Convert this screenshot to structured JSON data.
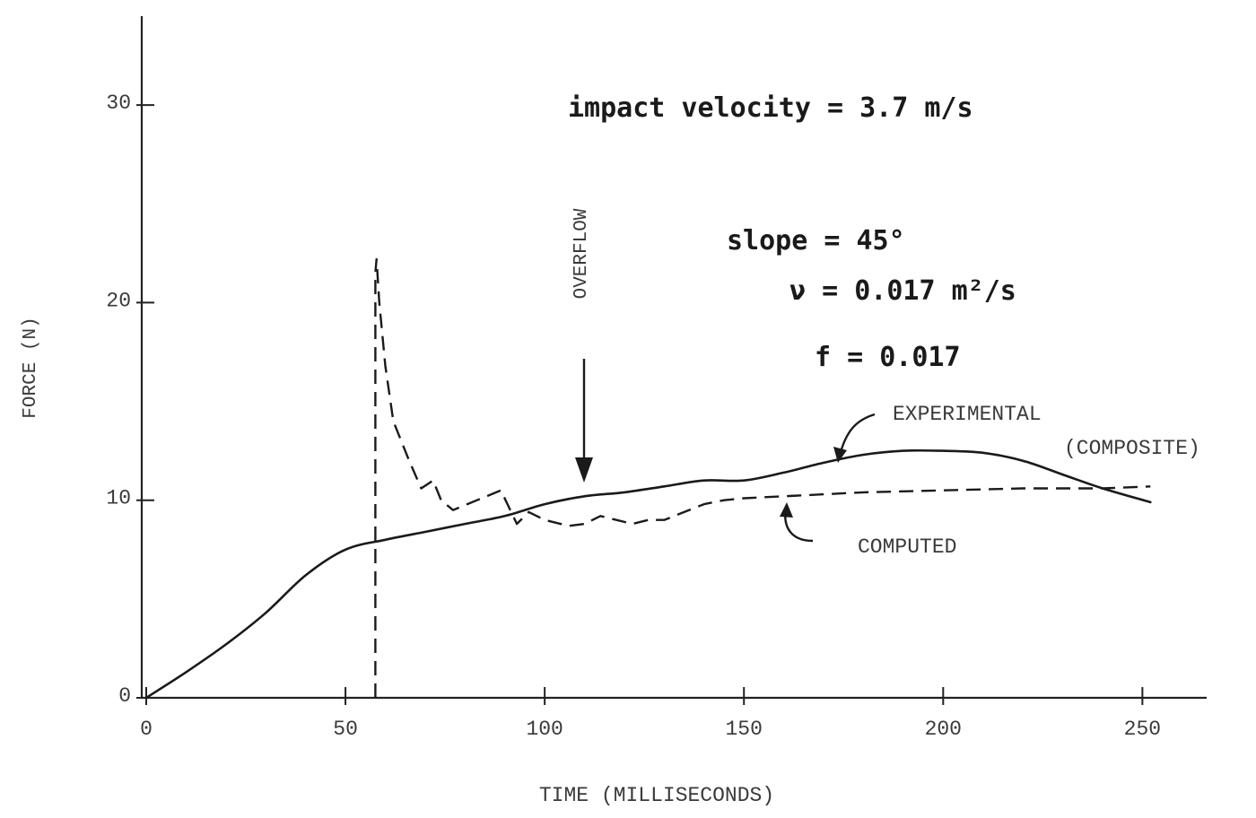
{
  "chart_data": {
    "type": "line",
    "xlabel": "TIME (MILLISECONDS)",
    "ylabel": "FORCE (N)",
    "xlim": [
      0,
      265
    ],
    "ylim": [
      0,
      34.5
    ],
    "xticks": [
      0,
      50,
      100,
      150,
      200,
      250
    ],
    "yticks": [
      0,
      10,
      20,
      30
    ],
    "x_tick_labels": [
      "0",
      "50",
      "100",
      "150",
      "200",
      "250"
    ],
    "y_tick_labels": [
      "0",
      "10",
      "20",
      "30"
    ],
    "annotations": {
      "velocity": "impact velocity = 3.7 m/s",
      "slope": "slope = 45°",
      "nu": "ν = 0.017 m²/s",
      "f": "f = 0.017",
      "overflow": "OVERFLOW",
      "overflow_x": 110,
      "experimental": "EXPERIMENTAL",
      "composite": "(COMPOSITE)",
      "computed": "COMPUTED"
    },
    "series": [
      {
        "name": "EXPERIMENTAL (COMPOSITE)",
        "style": "solid",
        "x": [
          0,
          10,
          20,
          30,
          40,
          50,
          60,
          70,
          80,
          90,
          100,
          110,
          120,
          130,
          140,
          150,
          160,
          170,
          180,
          190,
          200,
          210,
          220,
          230,
          240,
          252
        ],
        "y": [
          0,
          1.3,
          2.7,
          4.3,
          6.2,
          7.5,
          8.0,
          8.4,
          8.8,
          9.2,
          9.8,
          10.2,
          10.4,
          10.7,
          11.0,
          11.0,
          11.4,
          11.9,
          12.3,
          12.5,
          12.5,
          12.4,
          12.0,
          11.3,
          10.6,
          9.9
        ]
      },
      {
        "name": "COMPUTED",
        "style": "dashed",
        "x": [
          57.5,
          57.5,
          57.8,
          58.5,
          60,
          62,
          66,
          69,
          72,
          74,
          77,
          83,
          89,
          93,
          96,
          100,
          106,
          110,
          114,
          118,
          122,
          126,
          130,
          135,
          140,
          145,
          150,
          160,
          180,
          200,
          220,
          240,
          252
        ],
        "y": [
          0,
          21.5,
          22.2,
          20.0,
          16.8,
          14.0,
          12.0,
          10.6,
          11.0,
          10.0,
          9.5,
          10.0,
          10.5,
          8.8,
          9.4,
          9.0,
          8.7,
          8.8,
          9.2,
          9.0,
          8.8,
          9.0,
          9.0,
          9.4,
          9.8,
          10.0,
          10.1,
          10.2,
          10.4,
          10.5,
          10.6,
          10.6,
          10.7
        ]
      }
    ]
  }
}
